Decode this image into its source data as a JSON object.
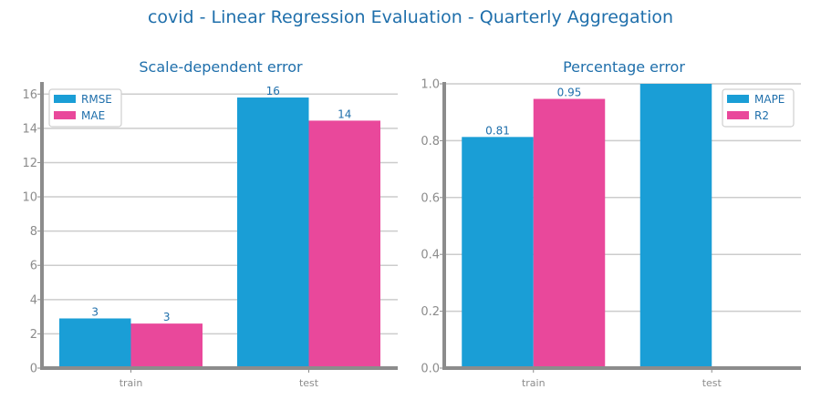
{
  "figure": {
    "title": "covid - Linear Regression Evaluation - Quarterly Aggregation"
  },
  "colors": {
    "title": "#1f6fab",
    "axis": "#8c8c8c",
    "grid": "#cccccc",
    "label": "#1f6fab"
  },
  "chart_data": [
    {
      "type": "bar",
      "title": "Scale-dependent error",
      "categories": [
        "train",
        "test"
      ],
      "series": [
        {
          "name": "RMSE",
          "color": "#1a9ed6",
          "values": [
            2.9,
            15.8
          ],
          "labels": [
            "3",
            "16"
          ]
        },
        {
          "name": "MAE",
          "color": "#e9489b",
          "values": [
            2.6,
            14.45
          ],
          "labels": [
            "3",
            "14"
          ]
        }
      ],
      "ylim": [
        0,
        16.6
      ],
      "yticks": [
        0,
        2,
        4,
        6,
        8,
        10,
        12,
        14,
        16
      ],
      "ytick_labels": [
        "0",
        "2",
        "4",
        "6",
        "8",
        "10",
        "12",
        "14",
        "16"
      ],
      "grid": true,
      "legend": "top-left"
    },
    {
      "type": "bar",
      "title": "Percentage error",
      "categories": [
        "train",
        "test"
      ],
      "series": [
        {
          "name": "MAPE",
          "color": "#1a9ed6",
          "values": [
            0.813,
            1.0
          ],
          "labels": [
            "0.81",
            ""
          ]
        },
        {
          "name": "R2",
          "color": "#e9489b",
          "values": [
            0.947,
            0
          ],
          "labels": [
            "0.95",
            ""
          ]
        }
      ],
      "ylim": [
        0,
        1.0
      ],
      "yticks": [
        0,
        0.2,
        0.4,
        0.6,
        0.8,
        1.0
      ],
      "ytick_labels": [
        "0.0",
        "0.2",
        "0.4",
        "0.6",
        "0.8",
        "1.0"
      ],
      "grid": true,
      "legend": "top-right"
    }
  ]
}
